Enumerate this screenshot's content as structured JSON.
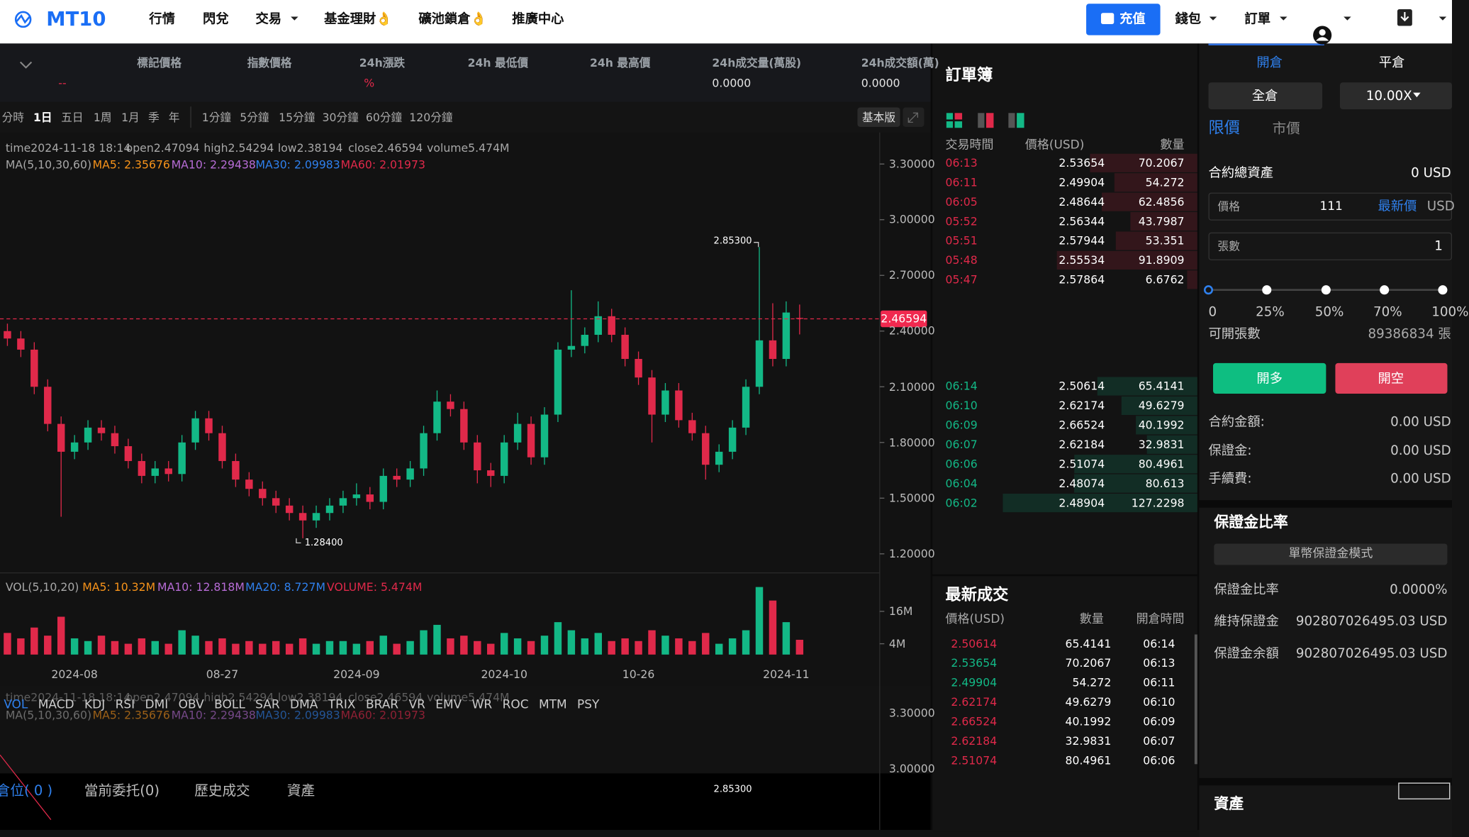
{
  "nav": {
    "logo": "MT10",
    "menu": [
      "行情",
      "閃兌",
      "交易",
      "基金理財👌",
      "礦池鎖倉👌",
      "推廣中心"
    ],
    "deposit": "充值",
    "wallet": "錢包",
    "orders": "訂單"
  },
  "ticker": [
    {
      "label": "標記價格",
      "value": "--"
    },
    {
      "label": "指數價格"
    },
    {
      "label": "24h漲跌",
      "value": "%"
    },
    {
      "label": "24h 最低價"
    },
    {
      "label": "24h 最高價"
    },
    {
      "label": "24h成交量(萬股)",
      "value": "0.0000"
    },
    {
      "label": "24h成交額(萬)",
      "value": "0.0000"
    }
  ],
  "toolbar": {
    "periods": [
      "分時",
      "1日",
      "五日",
      "1周",
      "1月",
      "季",
      "年"
    ],
    "minutes": [
      "1分鐘",
      "5分鐘",
      "15分鐘",
      "30分鐘",
      "60分鐘",
      "120分鐘"
    ],
    "mode": "基本版"
  },
  "chart": {
    "type": "candlestick",
    "info": [
      "time2024-11-18 18:14",
      "open2.47094",
      "high2.54294",
      "low2.38194",
      "close2.46594",
      "volume5.474M"
    ],
    "ma_legend": [
      {
        "text": "MA(5,10,30,60)",
        "color": "#a8a8a8"
      },
      {
        "text": "MA5: 2.35676",
        "color": "#f7931a"
      },
      {
        "text": "MA10: 2.29438",
        "color": "#b76cd6"
      },
      {
        "text": "MA30: 2.09983",
        "color": "#2f80ed"
      },
      {
        "text": "MA60: 2.01973",
        "color": "#e0294a"
      }
    ],
    "up_color": "#13b886",
    "down_color": "#e0294a",
    "ylim": [
      1.1,
      3.47
    ],
    "yticks": [
      {
        "value": 3.3,
        "label": "3.30000"
      },
      {
        "value": 3.0,
        "label": "3.00000"
      },
      {
        "value": 2.7,
        "label": "2.70000"
      },
      {
        "value": 2.4,
        "label": "2.40000"
      },
      {
        "value": 2.1,
        "label": "2.10000"
      },
      {
        "value": 1.8,
        "label": "1.80000"
      },
      {
        "value": 1.5,
        "label": "1.50000"
      },
      {
        "value": 1.2,
        "label": "1.20000"
      }
    ],
    "last_price": 2.46594,
    "high_label": {
      "value": 2.853,
      "label": "2.85300"
    },
    "low_label": {
      "value": 1.284,
      "label": "1.28400"
    },
    "categories": [
      null,
      null,
      null,
      null,
      null,
      "2024-08",
      null,
      null,
      null,
      null,
      null,
      null,
      null,
      null,
      null,
      null,
      "08-27",
      null,
      null,
      null,
      null,
      null,
      null,
      null,
      null,
      null,
      "2024-09",
      null,
      null,
      null,
      null,
      null,
      null,
      null,
      null,
      null,
      null,
      "2024-10",
      null,
      null,
      null,
      null,
      null,
      null,
      null,
      null,
      null,
      "10-26",
      null,
      null,
      null,
      null,
      null,
      null,
      null,
      null,
      null,
      null,
      "2024-11",
      null
    ],
    "candles": [
      [
        2.4,
        2.44,
        2.32,
        2.36
      ],
      [
        2.36,
        2.4,
        2.26,
        2.3
      ],
      [
        2.3,
        2.34,
        2.06,
        2.1
      ],
      [
        2.1,
        2.14,
        1.86,
        1.9
      ],
      [
        1.9,
        1.94,
        1.4,
        1.75
      ],
      [
        1.75,
        1.84,
        1.71,
        1.8
      ],
      [
        1.8,
        1.92,
        1.76,
        1.88
      ],
      [
        1.88,
        1.92,
        1.81,
        1.85
      ],
      [
        1.85,
        1.89,
        1.74,
        1.78
      ],
      [
        1.78,
        1.82,
        1.66,
        1.7
      ],
      [
        1.7,
        1.74,
        1.58,
        1.62
      ],
      [
        1.62,
        1.7,
        1.58,
        1.66
      ],
      [
        1.66,
        1.7,
        1.59,
        1.63
      ],
      [
        1.63,
        1.84,
        1.59,
        1.8
      ],
      [
        1.8,
        1.97,
        1.76,
        1.93
      ],
      [
        1.93,
        1.97,
        1.81,
        1.85
      ],
      [
        1.85,
        1.89,
        1.66,
        1.7
      ],
      [
        1.7,
        1.74,
        1.56,
        1.6
      ],
      [
        1.6,
        1.64,
        1.51,
        1.55
      ],
      [
        1.55,
        1.59,
        1.46,
        1.5
      ],
      [
        1.5,
        1.54,
        1.42,
        1.46
      ],
      [
        1.46,
        1.5,
        1.38,
        1.42
      ],
      [
        1.42,
        1.46,
        1.284,
        1.38
      ],
      [
        1.38,
        1.46,
        1.34,
        1.42
      ],
      [
        1.42,
        1.5,
        1.38,
        1.46
      ],
      [
        1.46,
        1.54,
        1.42,
        1.5
      ],
      [
        1.5,
        1.58,
        1.46,
        1.52
      ],
      [
        1.52,
        1.56,
        1.44,
        1.48
      ],
      [
        1.48,
        1.66,
        1.44,
        1.62
      ],
      [
        1.62,
        1.66,
        1.56,
        1.6
      ],
      [
        1.6,
        1.7,
        1.56,
        1.66
      ],
      [
        1.66,
        1.89,
        1.62,
        1.85
      ],
      [
        1.85,
        2.08,
        1.81,
        2.02
      ],
      [
        2.02,
        2.06,
        1.94,
        1.98
      ],
      [
        1.98,
        2.02,
        1.76,
        1.8
      ],
      [
        1.8,
        1.84,
        1.58,
        1.65
      ],
      [
        1.65,
        1.69,
        1.56,
        1.62
      ],
      [
        1.62,
        1.84,
        1.58,
        1.8
      ],
      [
        1.8,
        1.96,
        1.76,
        1.9
      ],
      [
        1.9,
        1.94,
        1.68,
        1.72
      ],
      [
        1.72,
        1.99,
        1.68,
        1.95
      ],
      [
        1.95,
        2.34,
        1.91,
        2.3
      ],
      [
        2.3,
        2.62,
        2.26,
        2.32
      ],
      [
        2.32,
        2.42,
        2.28,
        2.38
      ],
      [
        2.38,
        2.56,
        2.34,
        2.48
      ],
      [
        2.48,
        2.52,
        2.34,
        2.38
      ],
      [
        2.38,
        2.42,
        2.21,
        2.25
      ],
      [
        2.25,
        2.29,
        2.11,
        2.15
      ],
      [
        2.15,
        2.19,
        1.8,
        1.95
      ],
      [
        1.95,
        2.12,
        1.91,
        2.08
      ],
      [
        2.08,
        2.12,
        1.88,
        1.92
      ],
      [
        1.92,
        1.96,
        1.81,
        1.85
      ],
      [
        1.85,
        1.89,
        1.6,
        1.68
      ],
      [
        1.68,
        1.79,
        1.64,
        1.75
      ],
      [
        1.75,
        1.92,
        1.71,
        1.88
      ],
      [
        1.88,
        2.14,
        1.84,
        2.1
      ],
      [
        2.1,
        2.853,
        2.06,
        2.35
      ],
      [
        2.35,
        2.55,
        2.21,
        2.25
      ],
      [
        2.25,
        2.56,
        2.21,
        2.5
      ],
      [
        2.47094,
        2.54294,
        2.38194,
        2.46594
      ]
    ],
    "volume": {
      "legend": [
        {
          "text": "VOL(5,10,20)",
          "color": "#a8a8a8"
        },
        {
          "text": "MA5: 10.32M",
          "color": "#f7931a"
        },
        {
          "text": "MA10: 12.818M",
          "color": "#b76cd6"
        },
        {
          "text": "MA20: 8.727M",
          "color": "#2f80ed"
        },
        {
          "text": "VOLUME: 5.474M",
          "color": "#e0294a"
        }
      ],
      "values": [
        8,
        6,
        10,
        7,
        14,
        6,
        5,
        7,
        5,
        4,
        6,
        5,
        4,
        9,
        7,
        5,
        6,
        4,
        5,
        4,
        5,
        4,
        6,
        4,
        5,
        5,
        4,
        5,
        7,
        4,
        5,
        9,
        11,
        6,
        7,
        5,
        4,
        8,
        6,
        5,
        7,
        12,
        9,
        6,
        8,
        5,
        6,
        5,
        9,
        7,
        6,
        5,
        8,
        4,
        6,
        9,
        25,
        20,
        12,
        5.474
      ],
      "ylim": [
        0,
        30
      ],
      "yticks": [
        {
          "value": 16,
          "label": "16M"
        },
        {
          "value": 4,
          "label": "4M"
        }
      ]
    },
    "indicators": [
      "VOL",
      "MACD",
      "KDJ",
      "RSI",
      "DMI",
      "OBV",
      "BOLL",
      "SAR",
      "DMA",
      "TRIX",
      "BRAR",
      "VR",
      "EMV",
      "WR",
      "ROC",
      "MTM",
      "PSY"
    ]
  },
  "bottom_tabs": [
    "倉位( 0 )",
    "當前委托(0)",
    "歷史成交",
    "資產"
  ],
  "orderbook": {
    "title": "訂單簿",
    "headers": [
      "交易時間",
      "價格(USD)",
      "數量"
    ],
    "asks": [
      [
        "06:13",
        2.53654,
        70.2067
      ],
      [
        "06:11",
        2.49904,
        54.272
      ],
      [
        "06:05",
        2.48644,
        62.4856
      ],
      [
        "05:52",
        2.56344,
        43.7987
      ],
      [
        "05:51",
        2.57944,
        53.351
      ],
      [
        "05:48",
        2.55534,
        91.8909
      ],
      [
        "05:47",
        2.57864,
        6.6762
      ]
    ],
    "bids": [
      [
        "06:14",
        2.50614,
        65.4141
      ],
      [
        "06:10",
        2.62174,
        49.6279
      ],
      [
        "06:09",
        2.66524,
        40.1992
      ],
      [
        "06:07",
        2.62184,
        32.9831
      ],
      [
        "06:06",
        2.51074,
        80.4961
      ],
      [
        "06:04",
        2.48074,
        80.613
      ],
      [
        "06:02",
        2.48904,
        127.2298
      ]
    ]
  },
  "trades": {
    "title": "最新成交",
    "headers": [
      "價格(USD)",
      "數量",
      "開倉時間"
    ],
    "rows": [
      [
        2.50614,
        65.4141,
        "06:14"
      ],
      [
        2.53654,
        70.2067,
        "06:13"
      ],
      [
        2.49904,
        54.272,
        "06:11"
      ],
      [
        2.62174,
        49.6279,
        "06:10"
      ],
      [
        2.66524,
        40.1992,
        "06:09"
      ],
      [
        2.62184,
        32.9831,
        "06:07"
      ],
      [
        2.51074,
        80.4961,
        "06:06"
      ]
    ],
    "colors": [
      "#e0294a",
      "#13b886",
      "#13b886",
      "#e0294a",
      "#e0294a",
      "#e0294a",
      "#e0294a"
    ]
  },
  "panel": {
    "tabs": [
      "開倉",
      "平倉"
    ],
    "margin_mode": "全倉",
    "leverage": "10.00X",
    "order_types": [
      "限價",
      "市價"
    ],
    "total_assets": {
      "label": "合約總資產",
      "value": "0 USD"
    },
    "price": {
      "label": "價格",
      "value": 111,
      "latest": "最新價",
      "unit": "USD"
    },
    "qty": {
      "label": "張數",
      "value": 1
    },
    "slider": [
      "0",
      "25%",
      "50%",
      "70%",
      "100%"
    ],
    "available": {
      "label": "可開張數",
      "value": "89386834 張"
    },
    "buttons": [
      "開多",
      "開空"
    ],
    "summary": [
      {
        "label": "合約金額:",
        "value": "0.00 USD"
      },
      {
        "label": "保證金:",
        "value": "0.00 USD"
      },
      {
        "label": "手續費:",
        "value": "0.00 USD"
      }
    ],
    "margin": {
      "title": "保證金比率",
      "mode": "單幣保證金模式",
      "rows": [
        [
          "保證金比率",
          "0.0000%"
        ],
        [
          "維持保證金",
          "902807026495.03 USD"
        ],
        [
          "保證金余額",
          "902807026495.03 USD"
        ]
      ]
    },
    "assets_title": "資產"
  }
}
